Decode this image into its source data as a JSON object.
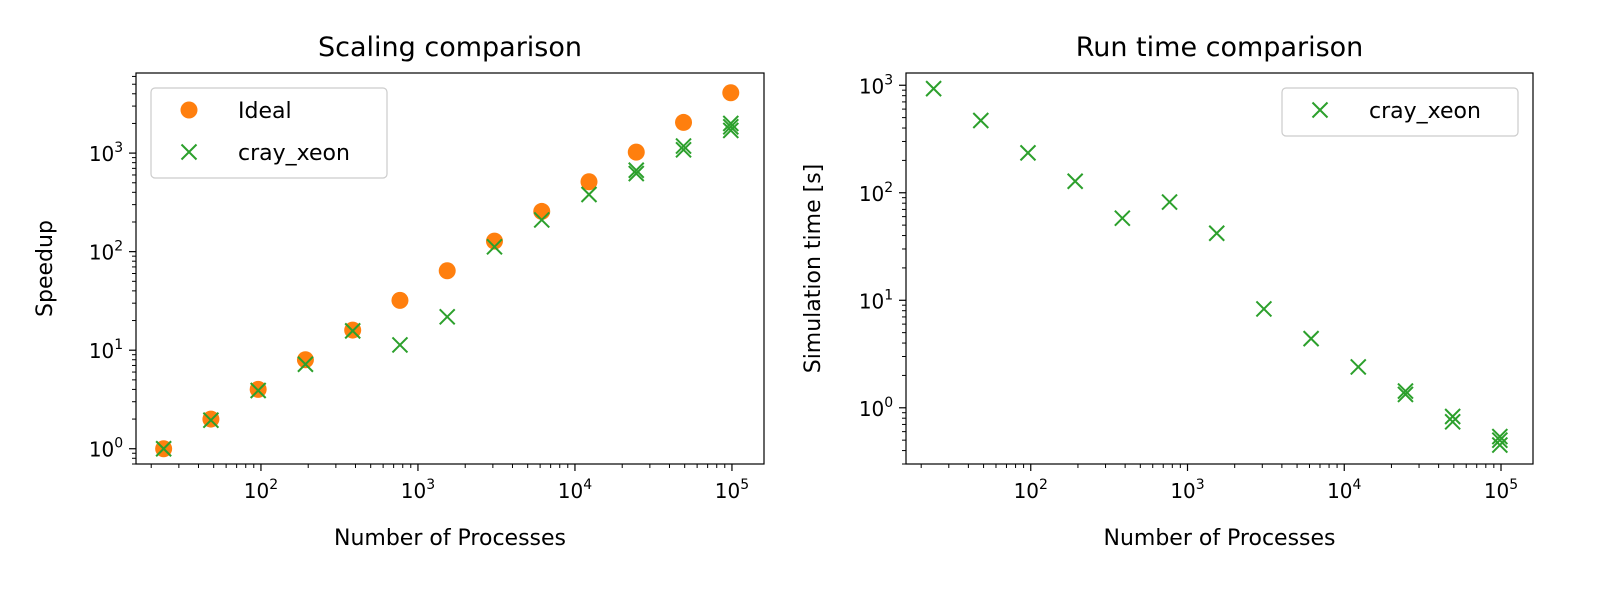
{
  "chart_data": [
    {
      "type": "scatter",
      "title": "Scaling comparison",
      "xlabel": "Number of Processes",
      "ylabel": "Speedup",
      "xscale": "log",
      "yscale": "log",
      "xlim": [
        16,
        160000
      ],
      "ylim": [
        0.7,
        6500
      ],
      "xticks": [
        100,
        1000,
        10000,
        100000
      ],
      "xtick_labels": [
        [
          "10",
          "2"
        ],
        [
          "10",
          "3"
        ],
        [
          "10",
          "4"
        ],
        [
          "10",
          "5"
        ]
      ],
      "yticks": [
        1,
        10,
        100,
        1000
      ],
      "ytick_labels": [
        [
          "10",
          "0"
        ],
        [
          "10",
          "1"
        ],
        [
          "10",
          "2"
        ],
        [
          "10",
          "3"
        ]
      ],
      "legend": "upper-left",
      "series": [
        {
          "name": "Ideal",
          "marker": "circle",
          "color": "#ff7f0e",
          "x": [
            24,
            48,
            96,
            192,
            384,
            768,
            1536,
            3072,
            6144,
            12288,
            24576,
            49152,
            98304
          ],
          "y": [
            1,
            2,
            4,
            8,
            16,
            32,
            64,
            128,
            256,
            512,
            1024,
            2048,
            4096
          ]
        },
        {
          "name": "cray_xeon",
          "marker": "x",
          "color": "#2ca02c",
          "x": [
            24,
            48,
            96,
            192,
            384,
            768,
            1536,
            3072,
            6144,
            12288,
            24576,
            24576,
            49152,
            49152,
            98304,
            98304,
            98304
          ],
          "y": [
            1,
            1.95,
            3.9,
            7.2,
            15.7,
            11.3,
            21.8,
            112,
            210,
            380,
            620,
            670,
            1080,
            1180,
            1700,
            1850,
            2000
          ]
        }
      ]
    },
    {
      "type": "scatter",
      "title": "Run time comparison",
      "xlabel": "Number of Processes",
      "ylabel": "Simulation time [s]",
      "xscale": "log",
      "yscale": "log",
      "xlim": [
        16,
        160000
      ],
      "ylim": [
        0.3,
        1300
      ],
      "xticks": [
        100,
        1000,
        10000,
        100000
      ],
      "xtick_labels": [
        [
          "10",
          "2"
        ],
        [
          "10",
          "3"
        ],
        [
          "10",
          "4"
        ],
        [
          "10",
          "5"
        ]
      ],
      "yticks": [
        1,
        10,
        100,
        1000
      ],
      "ytick_labels": [
        [
          "10",
          "0"
        ],
        [
          "10",
          "1"
        ],
        [
          "10",
          "2"
        ],
        [
          "10",
          "3"
        ]
      ],
      "legend": "upper-right",
      "series": [
        {
          "name": "cray_xeon",
          "marker": "x",
          "color": "#2ca02c",
          "x": [
            24,
            48,
            96,
            192,
            384,
            768,
            1536,
            3072,
            6144,
            12288,
            24576,
            24576,
            49152,
            49152,
            98304,
            98304,
            98304
          ],
          "y": [
            930,
            470,
            235,
            128,
            58,
            82,
            42,
            8.3,
            4.4,
            2.4,
            1.33,
            1.43,
            0.74,
            0.83,
            0.45,
            0.5,
            0.54
          ]
        }
      ]
    }
  ]
}
